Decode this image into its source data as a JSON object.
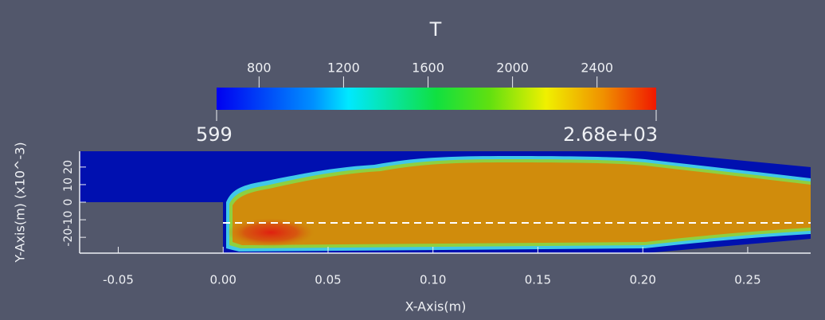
{
  "colorbar": {
    "title": "T",
    "ticks": [
      800,
      1200,
      1600,
      2000,
      2400
    ],
    "min": {
      "value": 599,
      "label": "599"
    },
    "max": {
      "value": 2680,
      "label": "2.68e+03"
    }
  },
  "x_axis": {
    "title": "X-Axis(m)",
    "range": [
      -0.0684,
      0.28
    ],
    "ticks": [
      {
        "value": -0.05,
        "label": "-0.05"
      },
      {
        "value": 0,
        "label": "0.00"
      },
      {
        "value": 0.05,
        "label": "0.05"
      },
      {
        "value": 0.1,
        "label": "0.10"
      },
      {
        "value": 0.15,
        "label": "0.15"
      },
      {
        "value": 0.2,
        "label": "0.20"
      },
      {
        "value": 0.25,
        "label": "0.25"
      }
    ]
  },
  "y_axis": {
    "title": "Y-Axis(m) (x10^-3)",
    "range": [
      -29,
      29
    ],
    "ticks": [
      -20,
      -10,
      0,
      10,
      20
    ]
  }
}
